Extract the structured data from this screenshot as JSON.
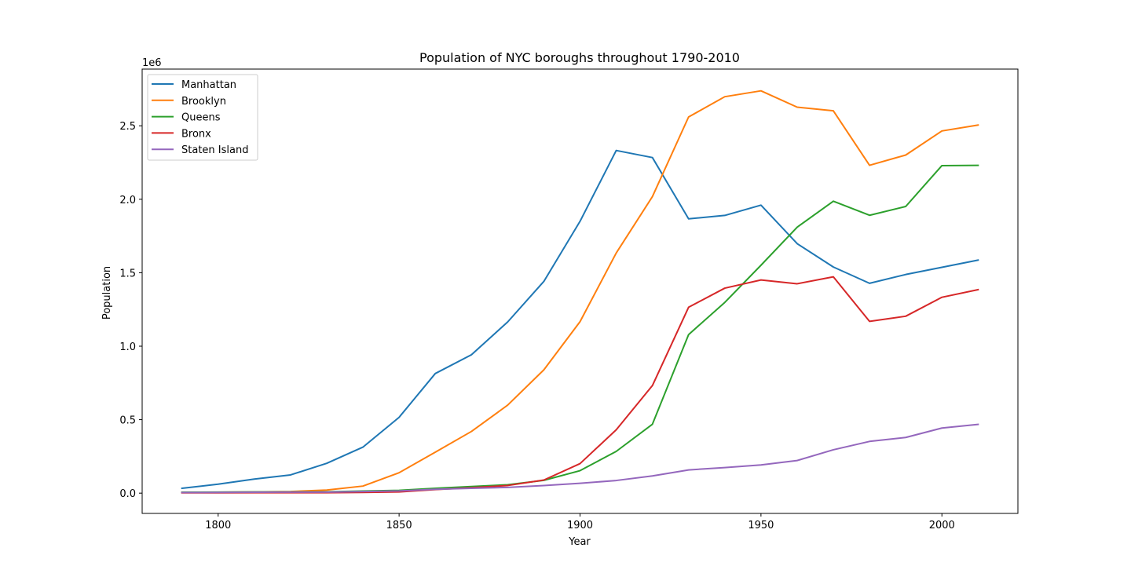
{
  "chart_data": {
    "type": "line",
    "title": "Population of NYC boroughs throughout 1790-2010",
    "xlabel": "Year",
    "ylabel": "Population",
    "y_offset_text": "1e6",
    "xlim": [
      1779,
      2021
    ],
    "ylim": [
      -0.138,
      2.886
    ],
    "x_ticks": [
      1800,
      1850,
      1900,
      1950,
      2000
    ],
    "y_ticks": [
      0.0,
      0.5,
      1.0,
      1.5,
      2.0,
      2.5
    ],
    "y_tick_labels": [
      "0.0",
      "0.5",
      "1.0",
      "1.5",
      "2.0",
      "2.5"
    ],
    "legend_position": "upper-left",
    "grid": false,
    "x": [
      1790,
      1800,
      1810,
      1820,
      1830,
      1840,
      1850,
      1860,
      1870,
      1880,
      1890,
      1900,
      1910,
      1920,
      1930,
      1940,
      1950,
      1960,
      1970,
      1980,
      1990,
      2000,
      2010
    ],
    "series": [
      {
        "name": "Manhattan",
        "color": "#1f77b4",
        "values": [
          0.033,
          0.061,
          0.096,
          0.124,
          0.203,
          0.313,
          0.516,
          0.814,
          0.942,
          1.165,
          1.441,
          1.85,
          2.332,
          2.284,
          1.867,
          1.89,
          1.96,
          1.698,
          1.539,
          1.428,
          1.488,
          1.537,
          1.586
        ]
      },
      {
        "name": "Brooklyn",
        "color": "#ff7f0e",
        "values": [
          0.005,
          0.006,
          0.008,
          0.011,
          0.021,
          0.048,
          0.139,
          0.279,
          0.42,
          0.599,
          0.839,
          1.167,
          1.634,
          2.018,
          2.56,
          2.698,
          2.738,
          2.627,
          2.602,
          2.231,
          2.301,
          2.465,
          2.505
        ]
      },
      {
        "name": "Queens",
        "color": "#2ca02c",
        "values": [
          0.006,
          0.007,
          0.008,
          0.008,
          0.009,
          0.014,
          0.019,
          0.033,
          0.045,
          0.057,
          0.087,
          0.153,
          0.284,
          0.469,
          1.079,
          1.298,
          1.551,
          1.81,
          1.987,
          1.891,
          1.951,
          2.229,
          2.231
        ]
      },
      {
        "name": "Bronx",
        "color": "#d62728",
        "values": [
          0.002,
          0.002,
          0.003,
          0.003,
          0.003,
          0.005,
          0.008,
          0.024,
          0.037,
          0.052,
          0.089,
          0.201,
          0.431,
          0.732,
          1.265,
          1.395,
          1.451,
          1.425,
          1.472,
          1.169,
          1.204,
          1.333,
          1.385
        ]
      },
      {
        "name": "Staten Island",
        "color": "#9467bd",
        "values": [
          0.004,
          0.005,
          0.006,
          0.007,
          0.007,
          0.011,
          0.015,
          0.026,
          0.033,
          0.039,
          0.052,
          0.067,
          0.086,
          0.117,
          0.158,
          0.174,
          0.192,
          0.222,
          0.295,
          0.352,
          0.379,
          0.443,
          0.468
        ]
      }
    ]
  }
}
